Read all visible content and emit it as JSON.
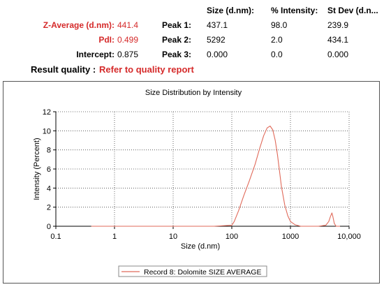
{
  "summary": {
    "z_average_label": "Z-Average (d.nm):",
    "z_average_value": "441.4",
    "pdi_label": "PdI:",
    "pdi_value": "0.499",
    "intercept_label": "Intercept:",
    "intercept_value": "0.875",
    "quality_label": "Result quality :",
    "quality_value": "Refer to quality report"
  },
  "peaks": {
    "headers": [
      "Size (d.nm):",
      "% Intensity:",
      "St Dev (d.n..."
    ],
    "rows": [
      {
        "label": "Peak 1:",
        "size": "437.1",
        "intensity": "98.0",
        "stdev": "239.9"
      },
      {
        "label": "Peak 2:",
        "size": "5292",
        "intensity": "2.0",
        "stdev": "434.1"
      },
      {
        "label": "Peak 3:",
        "size": "0.000",
        "intensity": "0.0",
        "stdev": "0.000"
      }
    ]
  },
  "colors": {
    "accent_red": "#d52a2a",
    "series_line": "#e06a5a"
  },
  "chart_data": {
    "type": "line",
    "title": "Size Distribution by Intensity",
    "xlabel": "Size (d.nm)",
    "ylabel": "Intensity (Percent)",
    "x_scale": "log",
    "xlim": [
      0.1,
      10000
    ],
    "ylim": [
      0,
      12
    ],
    "x_ticks": [
      0.1,
      1,
      10,
      100,
      1000,
      10000
    ],
    "x_tick_labels": [
      "0.1",
      "1",
      "10",
      "100",
      "1000",
      "10,000"
    ],
    "y_ticks": [
      0,
      2,
      4,
      6,
      8,
      10,
      12
    ],
    "y_tick_labels": [
      "0",
      "2",
      "4",
      "6",
      "8",
      "10",
      "12"
    ],
    "grid": true,
    "legend_position": "bottom-center",
    "series": [
      {
        "name": "Record 8: Dolomite SIZE AVERAGE",
        "x": [
          0.4,
          1,
          10,
          50,
          100,
          110,
          130,
          160,
          200,
          250,
          300,
          350,
          400,
          450,
          500,
          550,
          600,
          650,
          700,
          800,
          900,
          1000,
          1200,
          1500,
          2000,
          3000,
          4000,
          4500,
          4800,
          5100,
          5300,
          5600,
          6000,
          7000
        ],
        "y": [
          0,
          0,
          0,
          0,
          0.1,
          0.5,
          1.6,
          3.2,
          4.8,
          6.5,
          8.2,
          9.5,
          10.3,
          10.5,
          10.1,
          9.0,
          7.5,
          5.8,
          4.2,
          2.2,
          1.1,
          0.5,
          0.15,
          0,
          0,
          0,
          0.1,
          0.5,
          1.0,
          1.4,
          1.0,
          0.3,
          0,
          0
        ]
      }
    ]
  }
}
